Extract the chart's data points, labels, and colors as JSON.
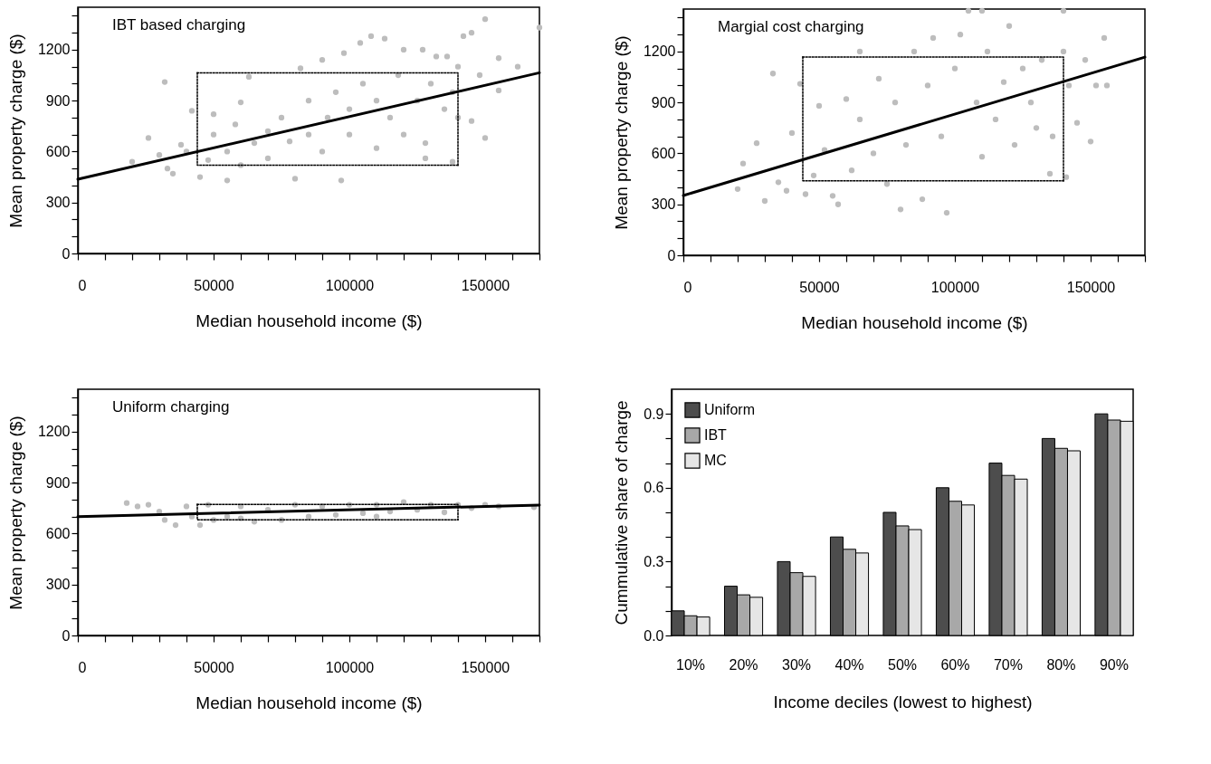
{
  "chart_data": [
    {
      "type": "scatter",
      "title": "IBT based charging",
      "xlabel": "Median household income ($)",
      "ylabel": "Mean property charge ($)",
      "xlim": [
        0,
        170000
      ],
      "ylim": [
        0,
        1450
      ],
      "xticks": [
        0,
        {
          "value": 10000,
          "label": null
        },
        {
          "value": 20000,
          "label": null
        },
        {
          "value": 30000,
          "label": null
        },
        {
          "value": 40000,
          "label": null
        },
        50000,
        {
          "value": 60000,
          "label": null
        },
        {
          "value": 70000,
          "label": null
        },
        {
          "value": 80000,
          "label": null
        },
        {
          "value": 90000,
          "label": null
        },
        100000,
        {
          "value": 110000,
          "label": null
        },
        {
          "value": 120000,
          "label": null
        },
        {
          "value": 130000,
          "label": null
        },
        {
          "value": 140000,
          "label": null
        },
        150000,
        {
          "value": 160000,
          "label": null
        },
        {
          "value": 170000,
          "label": null
        }
      ],
      "yticks": [
        0,
        {
          "value": 100,
          "label": null
        },
        {
          "value": 200,
          "label": null
        },
        300,
        {
          "value": 400,
          "label": null
        },
        {
          "value": 500,
          "label": null
        },
        600,
        {
          "value": 700,
          "label": null
        },
        {
          "value": 800,
          "label": null
        },
        900,
        {
          "value": 1000,
          "label": null
        },
        {
          "value": 1100,
          "label": null
        },
        1200,
        {
          "value": 1300,
          "label": null
        },
        {
          "value": 1400,
          "label": null
        }
      ],
      "series": [
        {
          "type": "scatter",
          "marker": "circle",
          "color": "#bdbdbd",
          "x": [
            20000,
            26000,
            32000,
            33000,
            150000,
            170000,
            148000,
            145000,
            150000,
            138000,
            97000,
            80000,
            55000,
            45000,
            40000,
            42000,
            50000,
            60000,
            63000,
            82000,
            90000,
            98000,
            108000,
            113000,
            104000,
            120000,
            127000,
            132000,
            136000,
            140000,
            142000,
            145000,
            155000,
            155000,
            162000,
            35000,
            30000,
            38000,
            48000,
            50000,
            55000,
            58000,
            60000,
            65000,
            70000,
            70000,
            75000,
            78000,
            85000,
            85000,
            90000,
            92000,
            95000,
            100000,
            100000,
            105000,
            110000,
            110000,
            115000,
            118000,
            120000,
            125000,
            128000,
            130000,
            135000,
            138000,
            140000,
            128000
          ],
          "values": [
            540,
            680,
            1010,
            500,
            1380,
            1330,
            1050,
            780,
            680,
            540,
            430,
            440,
            430,
            450,
            600,
            840,
            820,
            890,
            1040,
            1090,
            1140,
            1180,
            1280,
            1265,
            1240,
            1200,
            1200,
            1160,
            1160,
            1100,
            1280,
            1300,
            1150,
            960,
            1100,
            470,
            580,
            640,
            550,
            700,
            600,
            760,
            520,
            650,
            720,
            560,
            800,
            660,
            900,
            700,
            600,
            800,
            950,
            700,
            850,
            1000,
            620,
            900,
            800,
            1050,
            700,
            900,
            650,
            1000,
            850,
            950,
            800,
            560
          ]
        },
        {
          "type": "line",
          "color": "#000000",
          "x": [
            0,
            170000
          ],
          "values": [
            437,
            1064
          ]
        },
        {
          "type": "line",
          "color": "#000000",
          "line_style": "dotted",
          "x": [
            44000,
            140000,
            140000
          ],
          "values": [
            1064,
            1064,
            520
          ]
        },
        {
          "type": "line",
          "color": "#000000",
          "line_style": "dotted",
          "x": [
            44000,
            44000,
            140000
          ],
          "values": [
            1064,
            520,
            520
          ]
        }
      ]
    },
    {
      "type": "scatter",
      "title": "Margial cost charging",
      "xlabel": "Median household income ($)",
      "ylabel": "Mean property charge ($)",
      "xlim": [
        0,
        170000
      ],
      "ylim": [
        0,
        1450
      ],
      "xticks": [
        0,
        {
          "value": 10000,
          "label": null
        },
        {
          "value": 20000,
          "label": null
        },
        {
          "value": 30000,
          "label": null
        },
        {
          "value": 40000,
          "label": null
        },
        50000,
        {
          "value": 60000,
          "label": null
        },
        {
          "value": 70000,
          "label": null
        },
        {
          "value": 80000,
          "label": null
        },
        {
          "value": 90000,
          "label": null
        },
        100000,
        {
          "value": 110000,
          "label": null
        },
        {
          "value": 120000,
          "label": null
        },
        {
          "value": 130000,
          "label": null
        },
        {
          "value": 140000,
          "label": null
        },
        150000,
        {
          "value": 160000,
          "label": null
        },
        {
          "value": 170000,
          "label": null
        }
      ],
      "yticks": [
        0,
        {
          "value": 100,
          "label": null
        },
        {
          "value": 200,
          "label": null
        },
        300,
        {
          "value": 400,
          "label": null
        },
        {
          "value": 500,
          "label": null
        },
        600,
        {
          "value": 700,
          "label": null
        },
        {
          "value": 800,
          "label": null
        },
        900,
        {
          "value": 1000,
          "label": null
        },
        {
          "value": 1100,
          "label": null
        },
        1200,
        {
          "value": 1300,
          "label": null
        },
        {
          "value": 1400,
          "label": null
        }
      ],
      "series": [
        {
          "type": "scatter",
          "marker": "circle",
          "color": "#bdbdbd",
          "x": [
            20000,
            22000,
            27000,
            30000,
            33000,
            35000,
            38000,
            40000,
            43000,
            45000,
            48000,
            50000,
            52000,
            55000,
            57000,
            60000,
            62000,
            65000,
            65000,
            70000,
            72000,
            75000,
            78000,
            80000,
            82000,
            85000,
            88000,
            90000,
            92000,
            95000,
            97000,
            100000,
            102000,
            105000,
            108000,
            110000,
            110000,
            112000,
            115000,
            118000,
            120000,
            122000,
            125000,
            128000,
            132000,
            135000,
            136000,
            140000,
            141000,
            142000,
            145000,
            148000,
            150000,
            152000,
            155000,
            156000,
            140000,
            130000
          ],
          "values": [
            390,
            540,
            660,
            320,
            1070,
            430,
            380,
            720,
            1010,
            360,
            470,
            880,
            620,
            350,
            300,
            920,
            500,
            800,
            1200,
            600,
            1040,
            420,
            900,
            270,
            650,
            1200,
            330,
            1000,
            1280,
            700,
            250,
            1100,
            1300,
            1440,
            900,
            1440,
            580,
            1200,
            800,
            1020,
            1350,
            650,
            1100,
            900,
            1150,
            480,
            700,
            1440,
            460,
            1000,
            780,
            1150,
            670,
            1000,
            1280,
            1000,
            1200,
            750
          ]
        },
        {
          "type": "line",
          "color": "#000000",
          "x": [
            0,
            170000
          ],
          "values": [
            352,
            1167
          ]
        },
        {
          "type": "line",
          "color": "#000000",
          "line_style": "dotted",
          "x": [
            44000,
            140000,
            140000
          ],
          "values": [
            1167,
            1167,
            439
          ]
        },
        {
          "type": "line",
          "color": "#000000",
          "line_style": "dotted",
          "x": [
            44000,
            44000,
            140000
          ],
          "values": [
            1167,
            439,
            439
          ]
        }
      ]
    },
    {
      "type": "scatter",
      "title": "Uniform charging",
      "xlabel": "Median household income ($)",
      "ylabel": "Mean property charge ($)",
      "xlim": [
        0,
        170000
      ],
      "ylim": [
        0,
        1450
      ],
      "xticks": [
        0,
        {
          "value": 10000,
          "label": null
        },
        {
          "value": 20000,
          "label": null
        },
        {
          "value": 30000,
          "label": null
        },
        {
          "value": 40000,
          "label": null
        },
        50000,
        {
          "value": 60000,
          "label": null
        },
        {
          "value": 70000,
          "label": null
        },
        {
          "value": 80000,
          "label": null
        },
        {
          "value": 90000,
          "label": null
        },
        100000,
        {
          "value": 110000,
          "label": null
        },
        {
          "value": 120000,
          "label": null
        },
        {
          "value": 130000,
          "label": null
        },
        {
          "value": 140000,
          "label": null
        },
        150000,
        {
          "value": 160000,
          "label": null
        },
        {
          "value": 170000,
          "label": null
        }
      ],
      "yticks": [
        0,
        {
          "value": 100,
          "label": null
        },
        {
          "value": 200,
          "label": null
        },
        300,
        {
          "value": 400,
          "label": null
        },
        {
          "value": 500,
          "label": null
        },
        600,
        {
          "value": 700,
          "label": null
        },
        {
          "value": 800,
          "label": null
        },
        900,
        {
          "value": 1000,
          "label": null
        },
        {
          "value": 1100,
          "label": null
        },
        1200,
        {
          "value": 1300,
          "label": null
        },
        {
          "value": 1400,
          "label": null
        }
      ],
      "series": [
        {
          "type": "scatter",
          "marker": "circle",
          "color": "#bdbdbd",
          "x": [
            18000,
            22000,
            26000,
            30000,
            32000,
            36000,
            40000,
            45000,
            50000,
            55000,
            60000,
            65000,
            70000,
            75000,
            80000,
            85000,
            90000,
            95000,
            100000,
            105000,
            110000,
            115000,
            120000,
            125000,
            130000,
            135000,
            140000,
            145000,
            150000,
            155000,
            168000,
            48000,
            42000,
            60000,
            110000
          ],
          "values": [
            780,
            760,
            770,
            730,
            680,
            650,
            760,
            650,
            680,
            700,
            760,
            670,
            740,
            680,
            770,
            700,
            760,
            710,
            770,
            720,
            770,
            730,
            785,
            740,
            770,
            725,
            770,
            750,
            770,
            760,
            755,
            770,
            700,
            690,
            700
          ]
        },
        {
          "type": "line",
          "color": "#000000",
          "x": [
            0,
            170000
          ],
          "values": [
            700,
            768
          ]
        },
        {
          "type": "line",
          "color": "#000000",
          "line_style": "dotted",
          "x": [
            44000,
            140000,
            140000
          ],
          "values": [
            771,
            771,
            681
          ]
        },
        {
          "type": "line",
          "color": "#000000",
          "line_style": "dotted",
          "x": [
            44000,
            44000,
            140000
          ],
          "values": [
            771,
            681,
            681
          ]
        }
      ]
    },
    {
      "type": "bar",
      "xlabel": "Income deciles (lowest to highest)",
      "ylabel": "Cummulative share of charge",
      "legend": "top left",
      "categories": [
        "10%",
        "20%",
        "30%",
        "40%",
        "50%",
        "60%",
        "70%",
        "80%",
        "90%"
      ],
      "ylim": [
        0,
        1.0
      ],
      "yticks": [
        {
          "value": 0,
          "label": "0.0"
        },
        {
          "value": 0.1,
          "label": null
        },
        {
          "value": 0.2,
          "label": null
        },
        0.3,
        {
          "value": 0.4,
          "label": null
        },
        {
          "value": 0.5,
          "label": null
        },
        0.6,
        {
          "value": 0.7,
          "label": null
        },
        {
          "value": 0.8,
          "label": null
        },
        0.9
      ],
      "series": [
        {
          "name": "Uniform",
          "color": "#4d4d4d",
          "values": [
            0.1,
            0.2,
            0.3,
            0.4,
            0.5,
            0.6,
            0.7,
            0.8,
            0.9
          ]
        },
        {
          "name": "IBT",
          "color": "#a8a8a8",
          "values": [
            0.08,
            0.165,
            0.255,
            0.35,
            0.445,
            0.545,
            0.65,
            0.76,
            0.875
          ]
        },
        {
          "name": "MC",
          "color": "#e6e6e6",
          "values": [
            0.075,
            0.155,
            0.24,
            0.335,
            0.43,
            0.53,
            0.635,
            0.75,
            0.87
          ]
        }
      ]
    }
  ]
}
